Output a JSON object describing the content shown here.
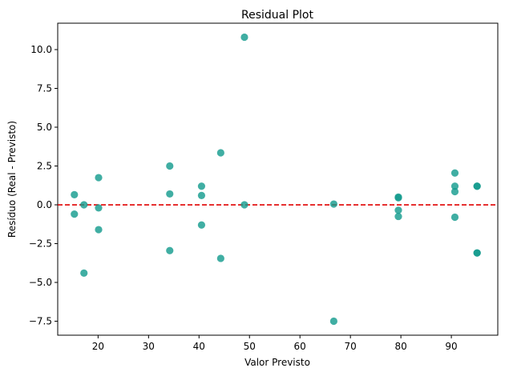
{
  "chart_data": {
    "type": "scatter",
    "title": "Residual Plot",
    "xlabel": "Valor Previsto",
    "ylabel": "Resíduo (Real - Previsto)",
    "xlim": [
      12.0,
      99.2
    ],
    "ylim": [
      -8.4,
      11.7
    ],
    "xticks": [
      20,
      30,
      40,
      50,
      60,
      70,
      80,
      90
    ],
    "xtick_labels": [
      "20",
      "30",
      "40",
      "50",
      "60",
      "70",
      "80",
      "90"
    ],
    "yticks": [
      -7.5,
      -5.0,
      -2.5,
      0.0,
      2.5,
      5.0,
      7.5,
      10.0
    ],
    "ytick_labels": [
      "−7.5",
      "−5.0",
      "−2.5",
      "0.0",
      "2.5",
      "5.0",
      "7.5",
      "10.0"
    ],
    "grid": false,
    "point_color": "#109a8c",
    "reference_line": {
      "y": 0,
      "color": "#e00000",
      "style": "dashed"
    },
    "points": [
      {
        "x": 15.3,
        "y": 0.65
      },
      {
        "x": 15.3,
        "y": -0.6
      },
      {
        "x": 17.2,
        "y": 0.0
      },
      {
        "x": 17.2,
        "y": -4.4
      },
      {
        "x": 20.1,
        "y": 1.75
      },
      {
        "x": 20.1,
        "y": -0.2
      },
      {
        "x": 20.1,
        "y": -1.6
      },
      {
        "x": 34.2,
        "y": 2.5
      },
      {
        "x": 34.2,
        "y": 0.7
      },
      {
        "x": 34.2,
        "y": -2.95
      },
      {
        "x": 40.5,
        "y": 1.2
      },
      {
        "x": 40.5,
        "y": 0.6
      },
      {
        "x": 40.5,
        "y": -1.3
      },
      {
        "x": 44.3,
        "y": 3.35
      },
      {
        "x": 44.3,
        "y": -3.45
      },
      {
        "x": 49.0,
        "y": 10.8
      },
      {
        "x": 49.0,
        "y": 0.0
      },
      {
        "x": 66.7,
        "y": 0.05
      },
      {
        "x": 66.7,
        "y": -7.5
      },
      {
        "x": 79.5,
        "y": 0.5
      },
      {
        "x": 79.5,
        "y": 0.45
      },
      {
        "x": 79.5,
        "y": -0.35
      },
      {
        "x": 79.5,
        "y": -0.75
      },
      {
        "x": 90.7,
        "y": 2.05
      },
      {
        "x": 90.7,
        "y": 1.2
      },
      {
        "x": 90.7,
        "y": 0.85
      },
      {
        "x": 90.7,
        "y": -0.8
      },
      {
        "x": 95.1,
        "y": 1.2
      },
      {
        "x": 95.1,
        "y": 1.2
      },
      {
        "x": 95.1,
        "y": -3.1
      },
      {
        "x": 95.1,
        "y": -3.1
      }
    ]
  }
}
